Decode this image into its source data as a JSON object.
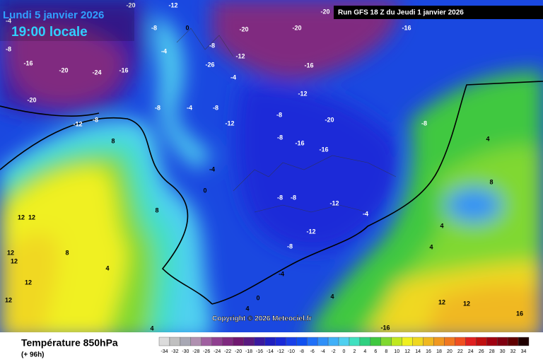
{
  "header": {
    "date": "Lundi 5 janvier 2026",
    "time": "19:00 locale",
    "run": "Run GFS 18 Z du Jeudi 1 janvier 2026"
  },
  "copyright": "Copyright © 2026 Meteociel.fr",
  "legend": {
    "title": "Température 850hPa",
    "lead": "(+ 96h)",
    "values": [
      -34,
      -32,
      -30,
      -28,
      -26,
      -24,
      -22,
      -20,
      -18,
      -16,
      -14,
      -12,
      -10,
      -8,
      -6,
      -4,
      -2,
      0,
      2,
      4,
      6,
      8,
      10,
      12,
      14,
      16,
      18,
      20,
      22,
      24,
      26,
      28,
      30,
      32,
      34
    ],
    "colors": [
      "#dcdcdc",
      "#c0c0c0",
      "#a8a8b4",
      "#b090b0",
      "#a060a0",
      "#904090",
      "#802a80",
      "#701870",
      "#5a1a80",
      "#3a1aa0",
      "#2020c0",
      "#1a2ad8",
      "#1a40e8",
      "#1050f0",
      "#2070f8",
      "#3090f8",
      "#40b0f8",
      "#50d0f0",
      "#40e0c0",
      "#30d080",
      "#40c840",
      "#80d830",
      "#c0e820",
      "#f0f020",
      "#f0d820",
      "#f0b820",
      "#f09820",
      "#f07820",
      "#f05020",
      "#e02020",
      "#c01010",
      "#a00010",
      "#800010",
      "#600000",
      "#200000"
    ]
  },
  "map_labels": [
    "-20",
    "-12",
    "-20",
    "-4",
    "-8",
    "0",
    "-20",
    "-20",
    "-16",
    "-8",
    "-4",
    "-8",
    "-12",
    "-16",
    "-20",
    "-24",
    "-16",
    "-26",
    "-16",
    "-4",
    "-12",
    "-20",
    "-8",
    "-4",
    "-8",
    "-12",
    "-8",
    "-12",
    "-8",
    "-20",
    "-8",
    "8",
    "-8",
    "-16",
    "-16",
    "-4",
    "4",
    "0",
    "-8",
    "-8",
    "-12",
    "8",
    "12",
    "12",
    "-4",
    "-12",
    "-8",
    "12",
    "8",
    "12",
    "4",
    "-4",
    "12",
    "12",
    "0",
    "4",
    "12",
    "12",
    "16",
    "-16",
    "4",
    "4",
    "4",
    "4",
    "8"
  ]
}
